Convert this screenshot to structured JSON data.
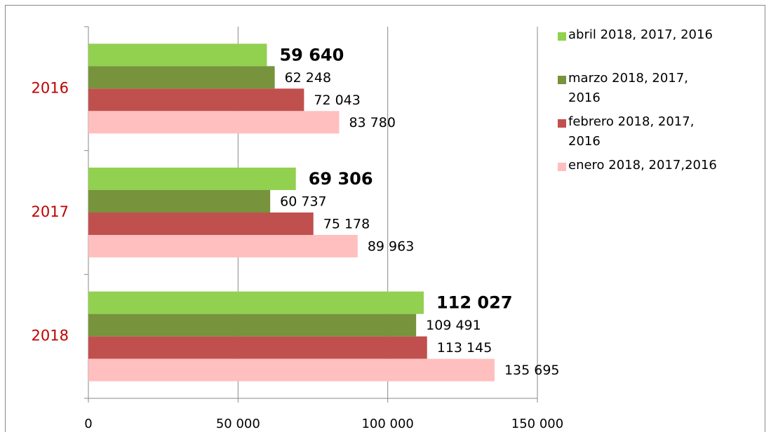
{
  "chart_data": {
    "type": "bar",
    "orientation": "horizontal",
    "categories": [
      "2016",
      "2017",
      "2018"
    ],
    "series": [
      {
        "name": "abril 2018, 2017, 2016",
        "color": "#92d050",
        "values": [
          59640,
          69306,
          112027
        ],
        "value_labels": [
          "59 640",
          "69 306",
          "112 027"
        ]
      },
      {
        "name": "marzo 2018, 2017, 2016",
        "color": "#77933c",
        "values": [
          62248,
          60737,
          109491
        ],
        "value_labels": [
          "62 248",
          "60 737",
          "109 491"
        ]
      },
      {
        "name": "febrero 2018, 2017, 2016",
        "color": "#c0504d",
        "values": [
          72043,
          75178,
          113145
        ],
        "value_labels": [
          "72 043",
          "75 178",
          "113 145"
        ]
      },
      {
        "name": "enero 2018, 2017,2016",
        "color": "#ffbfbf",
        "values": [
          83780,
          89963,
          135695
        ],
        "value_labels": [
          "83 780",
          "89 963",
          "135 695"
        ]
      }
    ],
    "xlim": [
      0,
      150000
    ],
    "xticks": [
      0,
      {
        "value": 50000,
        "label": "50 000"
      },
      {
        "value": 100000,
        "label": "100 000"
      },
      {
        "value": 150000,
        "label": "150 000"
      }
    ],
    "grid": true,
    "legend": "right"
  }
}
